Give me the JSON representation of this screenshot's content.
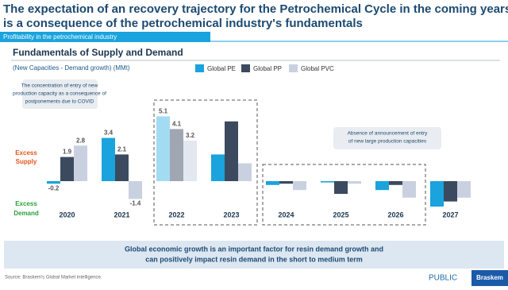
{
  "title": [
    "The expectation of an recovery trajectory for the Petrochemical Cycle in the coming years",
    "is a consequence of the petrochemical industry's fundamentals"
  ],
  "banner": "Profitability in the petrochemical industry",
  "subtitle": "Fundamentals of Supply and Demand",
  "footer_note": [
    "Global economic growth is an important factor for resin demand growth and",
    "can positively impact resin demand in the short to medium term"
  ],
  "source": "Source: Braskem's Global Market intelligence.",
  "classification": "PUBLIC",
  "logo": "Braskem",
  "chart_data": {
    "type": "bar",
    "y_label": "(New Capacities - Demand growth) (MMt)",
    "categories": [
      "2020",
      "2021",
      "2022",
      "2023",
      "2024",
      "2025",
      "2026",
      "2027"
    ],
    "series": [
      {
        "name": "Global PE",
        "color": "#1aa3dd",
        "colors": [
          "#1aa3dd",
          "#1aa3dd",
          "#a3dbf2",
          "#1aa3dd",
          "#1aa3dd",
          "#1aa3dd",
          "#1aa3dd",
          "#1aa3dd"
        ],
        "values": [
          -0.2,
          3.4,
          5.1,
          2.1,
          -0.3,
          -0.1,
          -0.7,
          -2.0
        ],
        "value_labels": [
          "-0.2",
          "3.4",
          "5.1",
          null,
          null,
          null,
          null,
          null
        ]
      },
      {
        "name": "Global PP",
        "color": "#3b4a5f",
        "colors": [
          "#3b4a5f",
          "#3b4a5f",
          "#a0a7b2",
          "#3b4a5f",
          "#3b4a5f",
          "#3b4a5f",
          "#3b4a5f",
          "#3b4a5f"
        ],
        "values": [
          1.9,
          2.1,
          4.1,
          4.7,
          -0.2,
          -1.0,
          -0.3,
          -1.6
        ],
        "value_labels": [
          "1.9",
          "2.1",
          "4.1",
          null,
          null,
          null,
          null,
          null
        ]
      },
      {
        "name": "Global PVC",
        "color": "#c9d1e1",
        "colors": [
          "#c9d1e1",
          "#c9d1e1",
          "#e3e7ef",
          "#c9d1e1",
          "#c9d1e1",
          "#c9d1e1",
          "#c9d1e1",
          "#c9d1e1"
        ],
        "values": [
          2.8,
          -1.4,
          3.2,
          1.4,
          -0.7,
          -0.2,
          -1.3,
          -1.3
        ],
        "value_labels": [
          "2.8",
          "-1.4",
          "3.2",
          null,
          null,
          null,
          null,
          null
        ]
      }
    ],
    "ylim": [
      -2.5,
      5.5
    ],
    "annotations": [
      [
        "The concentration of entry of new",
        "production capacity as a consequence of",
        "postponements due to COVID"
      ],
      [
        "Absence of announcement of entry",
        "of new large production capacities"
      ]
    ],
    "zone_labels": {
      "supply": [
        "Excess",
        "Supply"
      ],
      "demand": [
        "Excess",
        "Demand"
      ]
    }
  }
}
